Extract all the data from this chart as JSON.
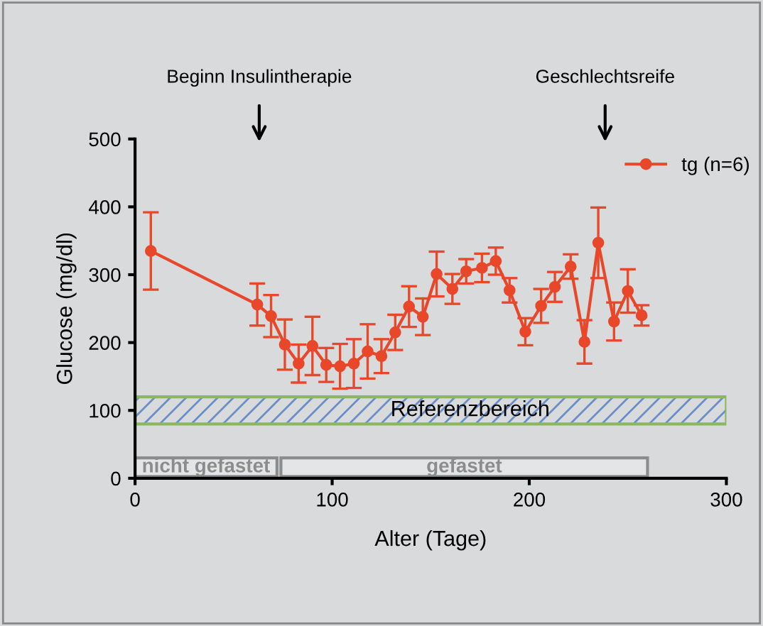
{
  "chart_data": {
    "type": "line",
    "xlabel": "Alter (Tage)",
    "ylabel": "Glucose (mg/dl)",
    "x": [
      8,
      62,
      69,
      76,
      83,
      90,
      97,
      104,
      111,
      118,
      125,
      132,
      139,
      146,
      153,
      161,
      168,
      176,
      183,
      190,
      198,
      206,
      213,
      221,
      228,
      235,
      243,
      250,
      257
    ],
    "series": [
      {
        "name": "tg (n=6)",
        "color": "#e8472a",
        "values": [
          335,
          256,
          239,
          197,
          169,
          195,
          167,
          165,
          169,
          187,
          180,
          215,
          253,
          238,
          301,
          279,
          305,
          310,
          320,
          277,
          216,
          254,
          282,
          312,
          201,
          347,
          231,
          276,
          240
        ],
        "errors": [
          57,
          31,
          31,
          37,
          28,
          43,
          25,
          33,
          36,
          40,
          25,
          26,
          30,
          27,
          33,
          22,
          18,
          21,
          20,
          18,
          20,
          25,
          22,
          18,
          32,
          52,
          28,
          32,
          15
        ]
      }
    ],
    "xlim": [
      0,
      300
    ],
    "ylim": [
      0,
      500
    ],
    "xticks": [
      0,
      100,
      200,
      300
    ],
    "yticks": [
      0,
      100,
      200,
      300,
      400,
      500
    ],
    "marker": "circle",
    "line_style": "solid",
    "grid": false,
    "legend": "top right",
    "bands": [
      {
        "axis": "y",
        "from": 80,
        "to": 120,
        "label": "Referenzbereich",
        "color": "#8ab860"
      },
      {
        "axis": "x",
        "from": 0,
        "to": 72,
        "label": "nicht gefastet",
        "color": "#8c8c8c"
      },
      {
        "axis": "x",
        "from": 74,
        "to": 260,
        "label": "gefastet",
        "color": "#8c8c8c"
      }
    ],
    "annotations": [
      "Beginn Insulintherapie",
      "Geschlechtsreife"
    ]
  }
}
